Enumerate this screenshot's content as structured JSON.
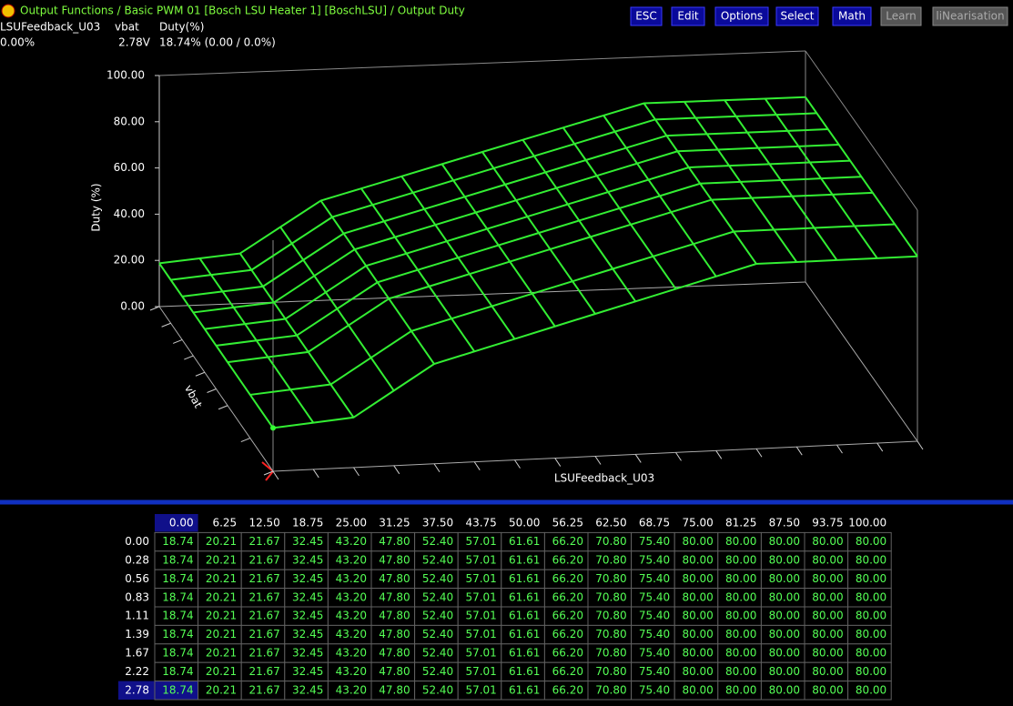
{
  "header": {
    "title": "Output Functions / Basic PWM 01 [Bosch LSU Heater 1] [BoschLSU] / Output Duty",
    "buttons": [
      "ESC",
      "Edit",
      "Options",
      "Select",
      "Math"
    ],
    "disabled_buttons": [
      "Learn",
      "liNearisation"
    ]
  },
  "status": {
    "labels": [
      "LSUFeedback_U03",
      "vbat",
      "Duty(%)"
    ],
    "values": [
      "0.00%",
      "2.78V",
      "18.74% (0.00 / 0.0%)"
    ]
  },
  "plot": {
    "z_label": "Duty (%)",
    "y_label": "vbat",
    "x_label": "LSUFeedback_U03",
    "zticks": [
      {
        "value": 0,
        "label": "0.00"
      },
      {
        "value": 20,
        "label": "20.00"
      },
      {
        "value": 40,
        "label": "40.00"
      },
      {
        "value": 60,
        "label": "60.00"
      },
      {
        "value": 80,
        "label": "80.00"
      },
      {
        "value": 100,
        "label": "100.00"
      }
    ]
  },
  "table": {
    "columns": [
      "0.00",
      "6.25",
      "12.50",
      "18.75",
      "25.00",
      "31.25",
      "37.50",
      "43.75",
      "50.00",
      "56.25",
      "62.50",
      "68.75",
      "75.00",
      "81.25",
      "87.50",
      "93.75",
      "100.00"
    ],
    "row_headers": [
      "0.00",
      "0.28",
      "0.56",
      "0.83",
      "1.11",
      "1.39",
      "1.67",
      "2.22",
      "2.78"
    ],
    "rows": [
      [
        "18.74",
        "20.21",
        "21.67",
        "32.45",
        "43.20",
        "47.80",
        "52.40",
        "57.01",
        "61.61",
        "66.20",
        "70.80",
        "75.40",
        "80.00",
        "80.00",
        "80.00",
        "80.00",
        "80.00"
      ],
      [
        "18.74",
        "20.21",
        "21.67",
        "32.45",
        "43.20",
        "47.80",
        "52.40",
        "57.01",
        "61.61",
        "66.20",
        "70.80",
        "75.40",
        "80.00",
        "80.00",
        "80.00",
        "80.00",
        "80.00"
      ],
      [
        "18.74",
        "20.21",
        "21.67",
        "32.45",
        "43.20",
        "47.80",
        "52.40",
        "57.01",
        "61.61",
        "66.20",
        "70.80",
        "75.40",
        "80.00",
        "80.00",
        "80.00",
        "80.00",
        "80.00"
      ],
      [
        "18.74",
        "20.21",
        "21.67",
        "32.45",
        "43.20",
        "47.80",
        "52.40",
        "57.01",
        "61.61",
        "66.20",
        "70.80",
        "75.40",
        "80.00",
        "80.00",
        "80.00",
        "80.00",
        "80.00"
      ],
      [
        "18.74",
        "20.21",
        "21.67",
        "32.45",
        "43.20",
        "47.80",
        "52.40",
        "57.01",
        "61.61",
        "66.20",
        "70.80",
        "75.40",
        "80.00",
        "80.00",
        "80.00",
        "80.00",
        "80.00"
      ],
      [
        "18.74",
        "20.21",
        "21.67",
        "32.45",
        "43.20",
        "47.80",
        "52.40",
        "57.01",
        "61.61",
        "66.20",
        "70.80",
        "75.40",
        "80.00",
        "80.00",
        "80.00",
        "80.00",
        "80.00"
      ],
      [
        "18.74",
        "20.21",
        "21.67",
        "32.45",
        "43.20",
        "47.80",
        "52.40",
        "57.01",
        "61.61",
        "66.20",
        "70.80",
        "75.40",
        "80.00",
        "80.00",
        "80.00",
        "80.00",
        "80.00"
      ],
      [
        "18.74",
        "20.21",
        "21.67",
        "32.45",
        "43.20",
        "47.80",
        "52.40",
        "57.01",
        "61.61",
        "66.20",
        "70.80",
        "75.40",
        "80.00",
        "80.00",
        "80.00",
        "80.00",
        "80.00"
      ],
      [
        "18.74",
        "20.21",
        "21.67",
        "32.45",
        "43.20",
        "47.80",
        "52.40",
        "57.01",
        "61.61",
        "66.20",
        "70.80",
        "75.40",
        "80.00",
        "80.00",
        "80.00",
        "80.00",
        "80.00"
      ]
    ]
  }
}
